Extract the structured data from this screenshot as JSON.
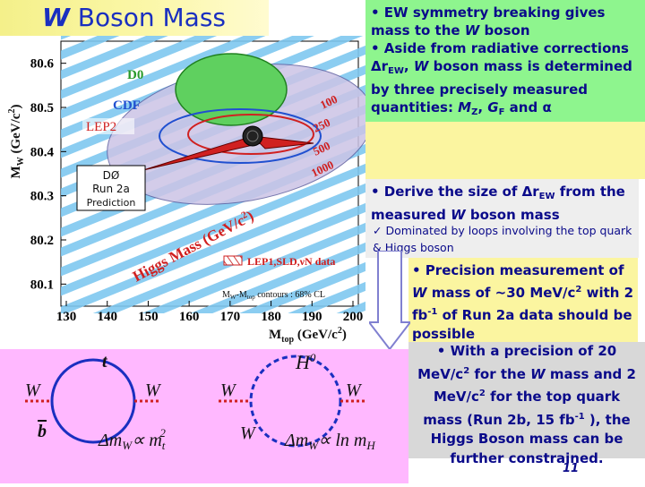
{
  "title": {
    "w": "W",
    "rest": " Boson Mass"
  },
  "box1": {
    "line1_pre": "• EW symmetry breaking gives mass to the ",
    "line1_w": "W",
    "line1_post": " boson",
    "line2_pre": "• Aside from radiative corrections ",
    "line2_delta": "Δr",
    "line2_sub": "EW",
    "line2_mid": ", ",
    "line2_w": "W",
    "line2_post": " boson mass is determined by three precisely measured quantities: ",
    "mz": "M",
    "mz_sub": "Z",
    "gf": "G",
    "gf_sub": "F",
    "and": " and ",
    "alpha": "α"
  },
  "box2": {
    "l1_pre": "• Derive the size of ",
    "l1_delta": "Δr",
    "l1_sub": "EW",
    "l1_post": " from the measured ",
    "l1_w": "W",
    "l1_end": " boson mass",
    "l2": "✓ Dominated by loops involving the top quark & Higgs boson"
  },
  "box3": {
    "pre": "• Precision measurement of ",
    "w": "W",
    "mid": " mass of ~30 MeV/c",
    "sup": "2",
    "post1": " with 2 fb",
    "sup2": "-1",
    "post2": " of Run 2a data should be possible"
  },
  "box4": {
    "pre": "• With a precision of  20 MeV/c",
    "sup1": "2",
    "mid1": " for the ",
    "w": "W",
    "mid2": " mass and 2 MeV/c",
    "sup2": "2",
    "mid3": " for the top quark mass (Run 2b, 15 fb",
    "sup3": "-1",
    "post": " ), the Higgs Boson mass can be further constrained."
  },
  "chart_data": {
    "type": "contour",
    "xlabel": "M",
    "xlabel_sub": "top",
    "xlabel_unit": " (GeV/c",
    "xlabel_sup": "2",
    "xlabel_close": ")",
    "ylabel": "M",
    "ylabel_sub": "W",
    "ylabel_unit": " (GeV/c",
    "ylabel_sup": "2",
    "ylabel_close": ")",
    "x_ticks": [
      "130",
      "140",
      "150",
      "160",
      "170",
      "180",
      "190",
      "200"
    ],
    "y_ticks": [
      "80.6",
      "80.5",
      "80.4",
      "80.3",
      "80.2",
      "80.1"
    ],
    "xlim": [
      130,
      200
    ],
    "ylim": [
      80.05,
      80.65
    ],
    "labels": {
      "d0": "D0",
      "cdf": "CDF",
      "lep2": "LEP2",
      "higgs": "Higgs Mass (GeV/c",
      "higgs_sup": "2",
      "higgs_close": ")",
      "lep1": "LEP1,SLD,νN data",
      "contours": "M",
      "contours_sub1": "W",
      "contours_mid": "-M",
      "contours_sub2": "top",
      "contours_post": " contours : 68% CL",
      "pred_l1": "DØ",
      "pred_l2": "Run 2a",
      "pred_l3": "Prediction",
      "h100": "100",
      "h250": "250",
      "h500": "500",
      "h1000": "1000"
    },
    "ellipses": [
      {
        "name": "D0",
        "cx": 174,
        "cy": 80.545,
        "color": "#3cb83c"
      },
      {
        "name": "CDF",
        "cx": 176,
        "cy": 80.45,
        "color": "#2050d0"
      },
      {
        "name": "LEP2",
        "cx": 170,
        "cy": 80.44,
        "color": "#d02020"
      }
    ]
  },
  "feyn": {
    "t": "t",
    "b": "b",
    "w1": "W",
    "w2": "W",
    "w3": "W",
    "w4": "W",
    "w5": "W",
    "h0": "H",
    "h0_sup": "0",
    "f1_pre": "Δm",
    "f1_sub": "W",
    "f1_mid": "∝ m",
    "f1_sub2": "t",
    "f1_sup": "2",
    "f2_pre": "Δm",
    "f2_sub": "W",
    "f2_mid": "∝ ln m",
    "f2_sub2": "H"
  },
  "page_number": "11"
}
